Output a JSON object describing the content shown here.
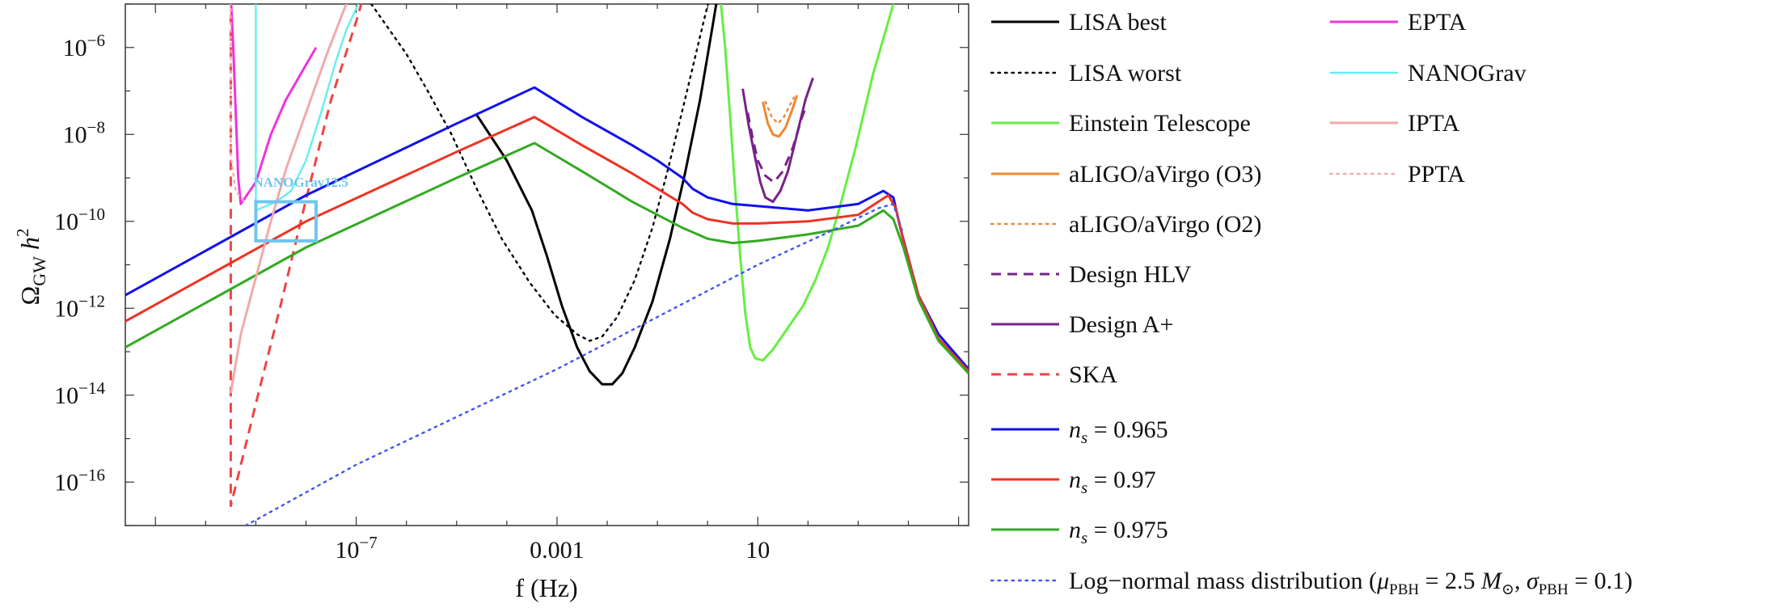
{
  "chart_data": {
    "type": "line",
    "xscale": "log10",
    "yscale": "log10",
    "xlim_log10": [
      -11.6,
      5.2
    ],
    "ylim_log10": [
      -17.0,
      -5.0
    ],
    "xlabel": "f (Hz)",
    "ylabel": {
      "main": "Ω",
      "sub": "GW",
      "tail": " h",
      "sup": "2"
    },
    "x_ticks": [
      {
        "log10": -7,
        "base": "10",
        "exp": "−7"
      },
      {
        "log10": -3,
        "base": "0.001",
        "exp": ""
      },
      {
        "log10": 1,
        "base": "10",
        "exp": ""
      }
    ],
    "y_ticks": [
      {
        "log10": -6,
        "exp": "−6"
      },
      {
        "log10": -8,
        "exp": "−8"
      },
      {
        "log10": -10,
        "exp": "−10"
      },
      {
        "log10": -12,
        "exp": "−12"
      },
      {
        "log10": -14,
        "exp": "−14"
      },
      {
        "log10": -16,
        "exp": "−16"
      }
    ],
    "annotation": {
      "text": "NANOGrav12.5",
      "color": "#6ec6ee"
    },
    "nanograv_box": {
      "x_log10": [
        -9.0,
        -7.8
      ],
      "y_log10": [
        -10.45,
        -9.55
      ],
      "color": "#6ec6ee"
    },
    "series": [
      {
        "key": "lisa_best",
        "name": "LISA best",
        "color": "#000000",
        "dash": "solid",
        "width": 3,
        "points": [
          [
            -4.6,
            -7.55
          ],
          [
            -4.0,
            -8.6
          ],
          [
            -3.5,
            -9.75
          ],
          [
            -3.2,
            -10.8
          ],
          [
            -2.9,
            -11.95
          ],
          [
            -2.6,
            -12.9
          ],
          [
            -2.35,
            -13.45
          ],
          [
            -2.1,
            -13.75
          ],
          [
            -1.9,
            -13.75
          ],
          [
            -1.7,
            -13.5
          ],
          [
            -1.45,
            -12.9
          ],
          [
            -1.1,
            -11.85
          ],
          [
            -0.75,
            -10.4
          ],
          [
            -0.45,
            -8.9
          ],
          [
            -0.15,
            -7.2
          ],
          [
            0.1,
            -5.5
          ],
          [
            0.2,
            -4.8
          ]
        ]
      },
      {
        "key": "lisa_worst",
        "name": "LISA worst",
        "color": "#000000",
        "dash": "dotted",
        "width": 2.4,
        "points": [
          [
            -6.7,
            -5.0
          ],
          [
            -6.0,
            -6.15
          ],
          [
            -5.6,
            -6.95
          ],
          [
            -5.1,
            -8.0
          ],
          [
            -4.6,
            -9.25
          ],
          [
            -4.1,
            -10.4
          ],
          [
            -3.55,
            -11.4
          ],
          [
            -3.05,
            -12.15
          ],
          [
            -2.6,
            -12.6
          ],
          [
            -2.35,
            -12.75
          ],
          [
            -2.1,
            -12.65
          ],
          [
            -1.8,
            -12.2
          ],
          [
            -1.45,
            -11.35
          ],
          [
            -1.1,
            -10.15
          ],
          [
            -0.8,
            -8.85
          ],
          [
            -0.45,
            -7.2
          ],
          [
            -0.1,
            -5.5
          ],
          [
            0.05,
            -4.8
          ]
        ]
      },
      {
        "key": "et",
        "name": "Einstein Telescope",
        "color": "#66ee44",
        "dash": "solid",
        "width": 3,
        "points": [
          [
            0.25,
            -4.8
          ],
          [
            0.35,
            -6.0
          ],
          [
            0.45,
            -7.6
          ],
          [
            0.55,
            -9.3
          ],
          [
            0.65,
            -10.8
          ],
          [
            0.75,
            -12.1
          ],
          [
            0.85,
            -12.9
          ],
          [
            0.95,
            -13.15
          ],
          [
            1.1,
            -13.2
          ],
          [
            1.3,
            -12.95
          ],
          [
            1.6,
            -12.45
          ],
          [
            1.9,
            -11.95
          ],
          [
            2.15,
            -11.35
          ],
          [
            2.4,
            -10.6
          ],
          [
            2.65,
            -9.6
          ],
          [
            2.95,
            -8.3
          ],
          [
            3.3,
            -6.6
          ],
          [
            3.65,
            -5.2
          ],
          [
            3.75,
            -4.8
          ]
        ]
      },
      {
        "key": "o3",
        "name": "aLIGO/aVirgo (O3)",
        "color": "#ee8833",
        "dash": "solid",
        "width": 3,
        "points": [
          [
            1.1,
            -7.25
          ],
          [
            1.2,
            -7.75
          ],
          [
            1.3,
            -8.0
          ],
          [
            1.42,
            -8.05
          ],
          [
            1.55,
            -7.85
          ],
          [
            1.68,
            -7.45
          ],
          [
            1.78,
            -7.1
          ]
        ]
      },
      {
        "key": "o2",
        "name": "aLIGO/aVirgo (O2)",
        "color": "#ee8833",
        "dash": "dotted",
        "width": 2.4,
        "points": [
          [
            1.15,
            -7.25
          ],
          [
            1.28,
            -7.6
          ],
          [
            1.4,
            -7.75
          ],
          [
            1.52,
            -7.6
          ],
          [
            1.65,
            -7.3
          ],
          [
            1.72,
            -7.15
          ]
        ]
      },
      {
        "key": "hlv",
        "name": "Design HLV",
        "color": "#772288",
        "dash": "dashed",
        "width": 3,
        "points": [
          [
            0.8,
            -7.5
          ],
          [
            0.9,
            -8.1
          ],
          [
            1.0,
            -8.6
          ],
          [
            1.15,
            -8.95
          ],
          [
            1.32,
            -9.1
          ],
          [
            1.5,
            -8.85
          ],
          [
            1.7,
            -8.3
          ],
          [
            1.88,
            -7.6
          ],
          [
            1.95,
            -7.4
          ]
        ]
      },
      {
        "key": "aplus",
        "name": "Design A+",
        "color": "#772288",
        "dash": "solid",
        "width": 3,
        "points": [
          [
            0.7,
            -6.95
          ],
          [
            0.82,
            -7.8
          ],
          [
            0.95,
            -8.55
          ],
          [
            1.05,
            -9.1
          ],
          [
            1.15,
            -9.45
          ],
          [
            1.3,
            -9.55
          ],
          [
            1.45,
            -9.3
          ],
          [
            1.6,
            -8.85
          ],
          [
            1.78,
            -8.0
          ],
          [
            1.95,
            -7.2
          ],
          [
            2.1,
            -6.7
          ]
        ]
      },
      {
        "key": "ska",
        "name": "SKA",
        "color": "#ee4444",
        "dash": "dashed",
        "width": 3,
        "points": [
          [
            -9.5,
            -5.25
          ],
          [
            -9.5,
            -16.55
          ],
          [
            -9.0,
            -14.2
          ],
          [
            -8.5,
            -11.9
          ],
          [
            -8.0,
            -9.5
          ],
          [
            -7.5,
            -7.2
          ],
          [
            -7.0,
            -5.4
          ],
          [
            -6.95,
            -5.2
          ],
          [
            -6.9,
            -5.0
          ],
          [
            -6.85,
            -4.8
          ]
        ]
      },
      {
        "key": "ns0965",
        "name": "",
        "legend_parts": {
          "var": "n",
          "sub": "s",
          "rest": " = 0.965"
        },
        "color": "#1111ee",
        "dash": "solid",
        "width": 3,
        "points": [
          [
            -11.6,
            -11.7
          ],
          [
            -8,
            -9.4
          ],
          [
            -5,
            -7.75
          ],
          [
            -3.45,
            -6.92
          ],
          [
            -2.5,
            -7.6
          ],
          [
            -1.5,
            -8.25
          ],
          [
            -1.0,
            -8.6
          ],
          [
            -0.5,
            -9.0
          ],
          [
            -0.3,
            -9.25
          ],
          [
            0,
            -9.45
          ],
          [
            0.5,
            -9.6
          ],
          [
            1,
            -9.65
          ],
          [
            2,
            -9.75
          ],
          [
            3,
            -9.6
          ],
          [
            3.5,
            -9.3
          ],
          [
            3.7,
            -9.45
          ],
          [
            3.85,
            -10.2
          ],
          [
            4.2,
            -11.7
          ],
          [
            4.6,
            -12.6
          ],
          [
            5.2,
            -13.4
          ]
        ]
      },
      {
        "key": "ns097",
        "name": "",
        "legend_parts": {
          "var": "n",
          "sub": "s",
          "rest": " = 0.97"
        },
        "color": "#ee3322",
        "dash": "solid",
        "width": 3,
        "points": [
          [
            -11.6,
            -12.3
          ],
          [
            -8,
            -10.0
          ],
          [
            -5,
            -8.4
          ],
          [
            -3.45,
            -7.6
          ],
          [
            -2.5,
            -8.25
          ],
          [
            -1.5,
            -8.9
          ],
          [
            -1.0,
            -9.25
          ],
          [
            -0.5,
            -9.6
          ],
          [
            -0.3,
            -9.8
          ],
          [
            0,
            -9.95
          ],
          [
            0.5,
            -10.05
          ],
          [
            1,
            -10.05
          ],
          [
            2,
            -10.0
          ],
          [
            3,
            -9.85
          ],
          [
            3.6,
            -9.4
          ],
          [
            3.75,
            -9.7
          ],
          [
            3.9,
            -10.45
          ],
          [
            4.2,
            -11.7
          ],
          [
            4.6,
            -12.7
          ],
          [
            5.2,
            -13.45
          ]
        ]
      },
      {
        "key": "ns0975",
        "name": "",
        "legend_parts": {
          "var": "n",
          "sub": "s",
          "rest": " = 0.975"
        },
        "color": "#33aa22",
        "dash": "solid",
        "width": 3,
        "points": [
          [
            -11.6,
            -12.9
          ],
          [
            -8,
            -10.6
          ],
          [
            -5,
            -9.0
          ],
          [
            -3.45,
            -8.2
          ],
          [
            -2.5,
            -8.85
          ],
          [
            -1.5,
            -9.55
          ],
          [
            -1.0,
            -9.85
          ],
          [
            -0.5,
            -10.15
          ],
          [
            0,
            -10.4
          ],
          [
            0.5,
            -10.5
          ],
          [
            1,
            -10.45
          ],
          [
            2,
            -10.3
          ],
          [
            3,
            -10.1
          ],
          [
            3.5,
            -9.75
          ],
          [
            3.7,
            -9.95
          ],
          [
            3.9,
            -10.6
          ],
          [
            4.2,
            -11.8
          ],
          [
            4.6,
            -12.75
          ],
          [
            5.2,
            -13.5
          ]
        ]
      },
      {
        "key": "lognormal",
        "name": "",
        "legend_parts": {
          "pre": "Log−normal mass distribution (",
          "mu": "μ",
          "mu_sub": "PBH",
          "mid": " = 2.5 ",
          "M": "M",
          "M_sub": "⊙",
          "sep": ", ",
          "sigma": "σ",
          "sigma_sub": "PBH",
          "post": " = 0.1)"
        },
        "color": "#4455ee",
        "dash": "dotted",
        "width": 2.4,
        "points": [
          [
            -9.2,
            -17.0
          ],
          [
            -7,
            -15.6
          ],
          [
            -5,
            -14.5
          ],
          [
            -3,
            -13.4
          ],
          [
            -1,
            -12.2
          ],
          [
            1,
            -11.0
          ],
          [
            2.5,
            -10.2
          ],
          [
            3.4,
            -9.7
          ],
          [
            3.7,
            -9.6
          ],
          [
            3.9,
            -10.3
          ]
        ]
      },
      {
        "key": "epta",
        "name": "EPTA",
        "color": "#ee33dd",
        "dash": "solid",
        "width": 3,
        "points": [
          [
            -9.5,
            -4.8
          ],
          [
            -9.45,
            -6.0
          ],
          [
            -9.35,
            -9.0
          ],
          [
            -9.3,
            -9.6
          ],
          [
            -9.0,
            -9.1
          ],
          [
            -8.7,
            -8.0
          ],
          [
            -8.4,
            -7.2
          ],
          [
            -8.1,
            -6.6
          ],
          [
            -7.9,
            -6.2
          ],
          [
            -7.8,
            -6.0
          ]
        ]
      },
      {
        "key": "nanograv",
        "name": "NANOGrav",
        "color": "#66eeee",
        "dash": "solid",
        "width": 2.4,
        "points": [
          [
            -9.0,
            -4.8
          ],
          [
            -9.0,
            -9.75
          ],
          [
            -8.6,
            -9.55
          ],
          [
            -8.3,
            -9.3
          ],
          [
            -8.0,
            -8.6
          ],
          [
            -7.7,
            -7.5
          ],
          [
            -7.4,
            -6.3
          ],
          [
            -7.2,
            -5.6
          ],
          [
            -7.0,
            -5.1
          ],
          [
            -6.9,
            -4.8
          ]
        ]
      },
      {
        "key": "ipta",
        "name": "IPTA",
        "color": "#f2aaaa",
        "dash": "solid",
        "width": 3,
        "points": [
          [
            -9.5,
            -13.95
          ],
          [
            -9.3,
            -12.6
          ],
          [
            -9.0,
            -11.3
          ],
          [
            -8.7,
            -10.0
          ],
          [
            -8.4,
            -8.8
          ],
          [
            -8.0,
            -7.5
          ],
          [
            -7.6,
            -6.2
          ],
          [
            -7.2,
            -5.0
          ],
          [
            -7.1,
            -4.8
          ]
        ]
      },
      {
        "key": "ppta",
        "name": "PPTA",
        "color": "#f2aaaa",
        "dash": "dotted",
        "width": 2.4,
        "points": [
          [
            -9.5,
            -4.8
          ],
          [
            -9.5,
            -8.5
          ],
          [
            -9.4,
            -9.3
          ],
          [
            -9.2,
            -9.6
          ]
        ]
      }
    ],
    "legend_left": [
      "lisa_best",
      "lisa_worst",
      "et",
      "o3",
      "o2",
      "hlv",
      "aplus",
      "ska",
      "ns0965",
      "ns097",
      "ns0975",
      "lognormal"
    ],
    "legend_right": [
      "epta",
      "nanograv",
      "ipta",
      "ppta"
    ]
  }
}
